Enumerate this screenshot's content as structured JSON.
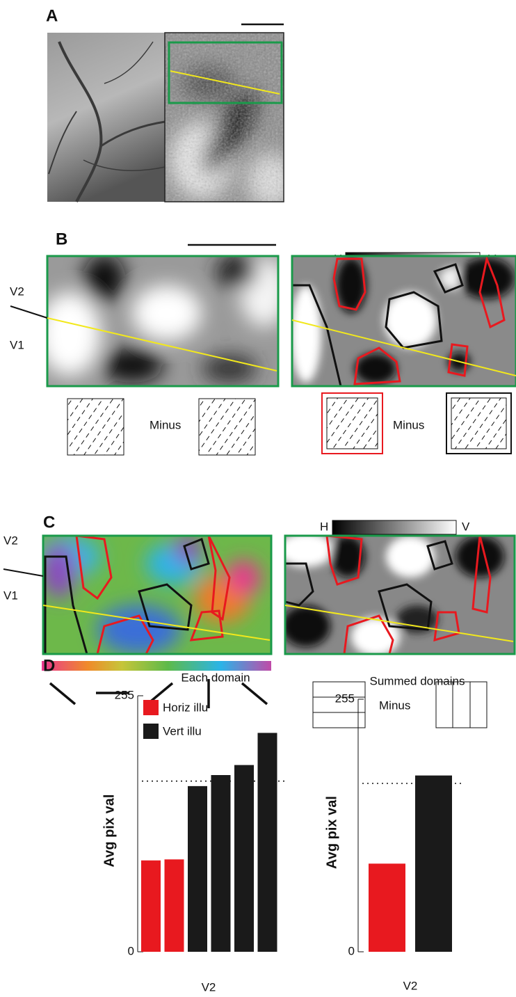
{
  "panels": {
    "a": "A",
    "b": "B",
    "c": "C",
    "d": "D"
  },
  "labels": {
    "v2": "V2",
    "v1": "V1",
    "minus": "Minus",
    "h": "H",
    "v": "V"
  },
  "chart_data": [
    {
      "type": "bar",
      "title": "Each domain",
      "ylabel": "Avg pix val",
      "xlabel": "V2",
      "ylim": [
        0,
        255
      ],
      "yticks": [
        0,
        255
      ],
      "reference": 170,
      "legend": true,
      "series": [
        {
          "name": "Horiz illu",
          "color": "#e8191f",
          "values": [
            91,
            92
          ]
        },
        {
          "name": "Vert illu",
          "color": "#1a1a1a",
          "values": [
            165,
            176,
            186,
            218
          ]
        }
      ]
    },
    {
      "type": "bar",
      "title": "Summed domains",
      "ylabel": "Avg pix val",
      "xlabel": "V2",
      "ylim": [
        0,
        255
      ],
      "yticks": [
        0,
        255
      ],
      "reference": 170,
      "legend": false,
      "series": [
        {
          "name": "Horiz illu",
          "color": "#e8191f",
          "values": [
            89
          ]
        },
        {
          "name": "Vert illu",
          "color": "#1a1a1a",
          "values": [
            178
          ]
        }
      ]
    }
  ]
}
